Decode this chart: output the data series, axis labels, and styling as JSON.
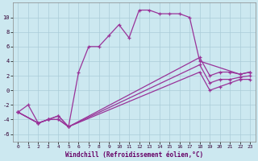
{
  "xlabel": "Windchill (Refroidissement éolien,°C)",
  "bg_color": "#cce8f0",
  "grid_color": "#aaccd8",
  "line_color": "#993399",
  "xlim": [
    -0.5,
    23.5
  ],
  "ylim": [
    -7,
    12
  ],
  "xticks": [
    0,
    1,
    2,
    3,
    4,
    5,
    6,
    7,
    8,
    9,
    10,
    11,
    12,
    13,
    14,
    15,
    16,
    17,
    18,
    19,
    20,
    21,
    22,
    23
  ],
  "yticks": [
    -6,
    -4,
    -2,
    0,
    2,
    4,
    6,
    8,
    10
  ],
  "curve1_x": [
    0,
    1,
    2,
    3,
    4,
    5,
    6,
    7,
    8,
    9,
    10,
    11,
    12,
    13,
    14,
    15,
    16,
    17,
    18,
    22,
    23
  ],
  "curve1_y": [
    -3,
    -2,
    -4.5,
    -4,
    -3.5,
    -5,
    2.5,
    6,
    6,
    7.5,
    9,
    7.2,
    11,
    11,
    10.5,
    10.5,
    10.5,
    10,
    4,
    2.2,
    2.5
  ],
  "curve2_x": [
    0,
    2,
    3,
    4,
    5,
    18,
    19,
    20,
    21,
    22,
    23
  ],
  "curve2_y": [
    -3,
    -4.5,
    -4,
    -4,
    -5,
    4.5,
    2,
    2.5,
    2.5,
    2.2,
    2.5
  ],
  "curve3_x": [
    0,
    2,
    3,
    4,
    5,
    18,
    19,
    20,
    21,
    22,
    23
  ],
  "curve3_y": [
    -3,
    -4.5,
    -4,
    -4,
    -5,
    3.5,
    1,
    1.5,
    1.5,
    1.8,
    2.0
  ],
  "curve4_x": [
    0,
    2,
    3,
    4,
    5,
    18,
    19,
    20,
    21,
    22,
    23
  ],
  "curve4_y": [
    -3,
    -4.5,
    -4,
    -3.5,
    -5,
    2.5,
    0,
    0.5,
    1.0,
    1.5,
    1.5
  ]
}
